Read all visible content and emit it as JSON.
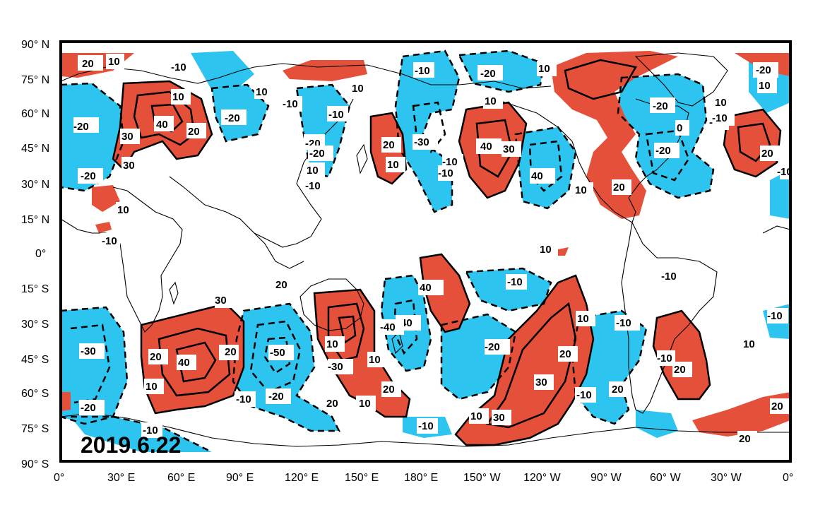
{
  "date": "2019.6.22",
  "lat_labels": [
    "90° N",
    "75° N",
    "60° N",
    "45° N",
    "30° N",
    "15° N",
    "0°",
    "15° S",
    "30° S",
    "45° S",
    "60° S",
    "75° S",
    "90° S"
  ],
  "lon_labels": [
    "0°",
    "30° E",
    "60° E",
    "90° E",
    "120° E",
    "150° E",
    "180° E",
    "150° W",
    "120° W",
    "90° W",
    "60° W",
    "30° W",
    "0°"
  ],
  "colors": {
    "positive": "#e5503a",
    "negative": "#2ec4f0",
    "frame": "#000000",
    "land": "#000000"
  },
  "contour_labels": [
    "20",
    "10",
    "10",
    "-20",
    "-10",
    "10",
    "-10",
    "-20",
    "10",
    "-10",
    "-20",
    "10",
    "-10",
    "10",
    "-20",
    "10",
    "10",
    "-20",
    "40",
    "20",
    "30",
    "40",
    "-20",
    "-10",
    "0",
    "20",
    "30",
    "-20",
    "-10",
    "-20",
    "-10",
    "10",
    "20",
    "40",
    "20",
    "30",
    "10",
    "-30",
    "-20",
    "-10",
    "10",
    "-10",
    "10",
    "40",
    "-10",
    "30",
    "-10",
    "20",
    "-40",
    "10",
    "10",
    "-10",
    "20",
    "-10",
    "20",
    "-30",
    "-10",
    "-40",
    "-20",
    "-30",
    "20",
    "20",
    "40",
    "10",
    "10",
    "-10",
    "-20",
    "-50",
    "10",
    "30",
    "20",
    "30",
    "20",
    "10",
    "-20",
    "20",
    "20",
    "10",
    "-10",
    "20",
    "-10",
    "-10",
    "-10",
    "30",
    "10",
    "-10"
  ]
}
